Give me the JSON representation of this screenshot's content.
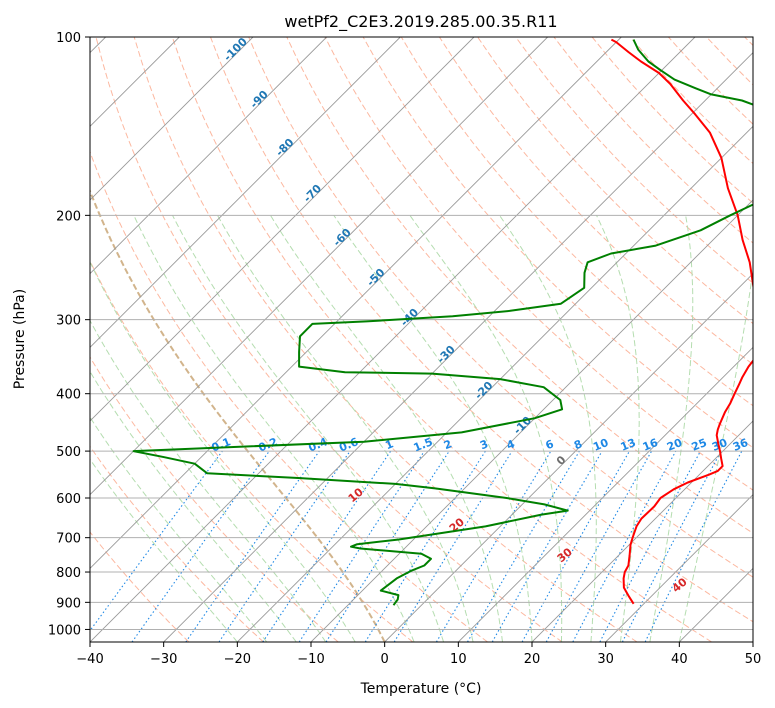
{
  "chart_data": {
    "type": "line",
    "subtype": "skew-t log-p",
    "title": "wetPf2_C2E3.2019.285.00.35.R11",
    "xlabel": "Temperature (°C)",
    "ylabel": "Pressure (hPa)",
    "xlim": [
      -40,
      50
    ],
    "ylim": [
      1050,
      100
    ],
    "y_scale": "log",
    "x_ticks": [
      -40,
      -30,
      -20,
      -10,
      0,
      10,
      20,
      30,
      40,
      50
    ],
    "x_tick_labels": [
      "−40",
      "−30",
      "−20",
      "−10",
      "0",
      "10",
      "20",
      "30",
      "40",
      "50"
    ],
    "y_ticks": [
      1000,
      900,
      800,
      700,
      600,
      500,
      400,
      300,
      200,
      100
    ],
    "y_tick_labels": [
      "1000",
      "900",
      "800",
      "700",
      "600",
      "500",
      "400",
      "300",
      "200",
      "100"
    ],
    "grid": true,
    "colors": {
      "temperature": "#ff0000",
      "dewpoint": "#008000",
      "isotherm": "#999999",
      "dry_adiabat": "#fcb8a0",
      "moist_adiabat": "#b5ddb0",
      "mixing_ratio": "#1e88e5",
      "isotherm_label": "#1f77b4",
      "dry_adiabat_label": "#d62728",
      "wet_bulb_zero": "#d2b48c"
    },
    "series": [
      {
        "name": "",
        "role": "temperature",
        "points": [
          [
            28.6,
            905
          ],
          [
            27.0,
            880
          ],
          [
            25.1,
            850
          ],
          [
            23.8,
            820
          ],
          [
            23.1,
            800
          ],
          [
            22.7,
            780
          ],
          [
            21.5,
            750
          ],
          [
            20.2,
            720
          ],
          [
            19.5,
            700
          ],
          [
            18.5,
            670
          ],
          [
            18.1,
            650
          ],
          [
            18.2,
            620
          ],
          [
            17.9,
            600
          ],
          [
            18.5,
            580
          ],
          [
            19.5,
            565
          ],
          [
            21.3,
            548
          ],
          [
            22.0,
            540
          ],
          [
            22.0,
            530
          ],
          [
            20.8,
            515
          ],
          [
            19.6,
            500
          ],
          [
            18.3,
            485
          ],
          [
            17.0,
            470
          ],
          [
            16.4,
            460
          ],
          [
            15.9,
            450
          ],
          [
            15.0,
            430
          ],
          [
            14.5,
            415
          ],
          [
            13.8,
            400
          ],
          [
            13.1,
            385
          ],
          [
            12.6,
            375
          ],
          [
            12.0,
            360
          ],
          [
            11.7,
            345
          ],
          [
            11.2,
            330
          ],
          [
            10.0,
            320
          ],
          [
            7.5,
            300
          ],
          [
            5.0,
            285
          ],
          [
            2.0,
            265
          ],
          [
            -2.0,
            240
          ],
          [
            -6.0,
            220
          ],
          [
            -10.0,
            200
          ],
          [
            -15.0,
            180
          ],
          [
            -20.0,
            160
          ],
          [
            -25.0,
            145
          ],
          [
            -29.5,
            135
          ],
          [
            -33.0,
            128
          ],
          [
            -37.0,
            120
          ],
          [
            -40.0,
            115
          ],
          [
            -44.0,
            110
          ],
          [
            -47.0,
            106
          ],
          [
            -50.0,
            102
          ],
          [
            -51.0,
            101
          ]
        ]
      },
      {
        "name": "",
        "role": "dewpoint",
        "points": [
          [
            -3.8,
            910
          ],
          [
            -4.0,
            890
          ],
          [
            -4.5,
            875
          ],
          [
            -7.5,
            860
          ],
          [
            -7.0,
            820
          ],
          [
            -6.0,
            795
          ],
          [
            -5.0,
            780
          ],
          [
            -5.0,
            760
          ],
          [
            -7.0,
            745
          ],
          [
            -16.0,
            730
          ],
          [
            -17.5,
            725
          ],
          [
            -17.0,
            718
          ],
          [
            -12.0,
            705
          ],
          [
            -2.0,
            670
          ],
          [
            4.0,
            640
          ],
          [
            7.0,
            630
          ],
          [
            3.0,
            615
          ],
          [
            -3.0,
            600
          ],
          [
            -14.0,
            578
          ],
          [
            -20.0,
            568
          ],
          [
            -34.0,
            555
          ],
          [
            -47.0,
            545
          ],
          [
            -50.0,
            525
          ],
          [
            -55.0,
            512
          ],
          [
            -60.0,
            500
          ],
          [
            -30.0,
            482
          ],
          [
            -18.0,
            465
          ],
          [
            -10.0,
            440
          ],
          [
            -7.5,
            425
          ],
          [
            -9.0,
            410
          ],
          [
            -13.0,
            390
          ],
          [
            -20.0,
            378
          ],
          [
            -30.0,
            370
          ],
          [
            -42.0,
            368
          ],
          [
            -49.0,
            360
          ],
          [
            -51.0,
            340
          ],
          [
            -53.0,
            320
          ],
          [
            -53.0,
            305
          ],
          [
            -46.0,
            302
          ],
          [
            -35.0,
            296
          ],
          [
            -28.0,
            290
          ],
          [
            -22.0,
            282
          ],
          [
            -21.0,
            265
          ],
          [
            -23.0,
            250
          ],
          [
            -24.0,
            240
          ],
          [
            -22.0,
            232
          ],
          [
            -17.0,
            225
          ],
          [
            -13.0,
            212
          ],
          [
            -11.0,
            200
          ],
          [
            -9.0,
            190
          ],
          [
            -8.0,
            180
          ],
          [
            -9.0,
            170
          ],
          [
            -11.0,
            160
          ],
          [
            -14.0,
            150
          ],
          [
            -17.0,
            140
          ],
          [
            -21.0,
            132
          ],
          [
            -25.0,
            128
          ],
          [
            -30.0,
            125
          ],
          [
            -33.0,
            122
          ],
          [
            -37.0,
            118
          ],
          [
            -40.0,
            114
          ],
          [
            -43.0,
            110
          ],
          [
            -46.0,
            105
          ],
          [
            -48.0,
            101
          ]
        ]
      }
    ],
    "isotherm_labels": [
      "-100",
      "-90",
      "-80",
      "-70",
      "-60",
      "-50",
      "-40",
      "-30",
      "-20",
      "-10",
      "0"
    ],
    "dry_adiabat_labels": [
      "10",
      "20",
      "30",
      "40"
    ],
    "mixing_ratio_labels": [
      "0.1",
      "0.2",
      "0.4",
      "0.6",
      "1",
      "1.5",
      "2",
      "3",
      "4",
      "6",
      "8",
      "10",
      "13",
      "16",
      "20",
      "25",
      "30",
      "36"
    ]
  }
}
